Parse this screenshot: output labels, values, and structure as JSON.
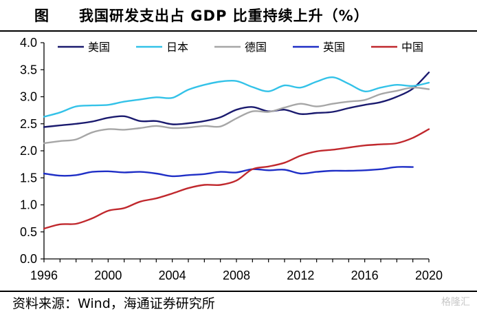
{
  "title": {
    "fig": "图",
    "text": "我国研发支出占 GDP 比重持续上升（%）"
  },
  "source": "资料来源：Wind，海通证券研究所",
  "watermark": "格隆汇",
  "chart_data": {
    "type": "line",
    "title": "我国研发支出占 GDP 比重持续上升（%）",
    "xlabel": "",
    "ylabel": "",
    "xlim": [
      1996,
      2020
    ],
    "ylim": [
      0.0,
      4.0
    ],
    "x_ticks": [
      1996,
      2000,
      2004,
      2008,
      2012,
      2016,
      2020
    ],
    "y_ticks": [
      "0.0",
      "0.5",
      "1.0",
      "1.5",
      "2.0",
      "2.5",
      "3.0",
      "3.5",
      "4.0"
    ],
    "grid": false,
    "legend_position": "top",
    "series": [
      {
        "name": "美国",
        "color": "#1a1a6e",
        "x": [
          1996,
          1997,
          1998,
          1999,
          2000,
          2001,
          2002,
          2003,
          2004,
          2005,
          2006,
          2007,
          2008,
          2009,
          2010,
          2011,
          2012,
          2013,
          2014,
          2015,
          2016,
          2017,
          2018,
          2019,
          2020
        ],
        "y": [
          2.44,
          2.47,
          2.5,
          2.54,
          2.61,
          2.64,
          2.55,
          2.55,
          2.49,
          2.51,
          2.55,
          2.62,
          2.76,
          2.81,
          2.73,
          2.76,
          2.68,
          2.7,
          2.72,
          2.79,
          2.85,
          2.9,
          3.0,
          3.15,
          3.45
        ]
      },
      {
        "name": "日本",
        "color": "#33c2e8",
        "x": [
          1996,
          1997,
          1998,
          1999,
          2000,
          2001,
          2002,
          2003,
          2004,
          2005,
          2006,
          2007,
          2008,
          2009,
          2010,
          2011,
          2012,
          2013,
          2014,
          2015,
          2016,
          2017,
          2018,
          2019,
          2020
        ],
        "y": [
          2.63,
          2.71,
          2.82,
          2.84,
          2.85,
          2.91,
          2.95,
          2.99,
          2.98,
          3.13,
          3.22,
          3.28,
          3.29,
          3.18,
          3.1,
          3.21,
          3.17,
          3.28,
          3.36,
          3.24,
          3.1,
          3.17,
          3.22,
          3.2,
          3.26
        ]
      },
      {
        "name": "德国",
        "color": "#a6a6a6",
        "x": [
          1996,
          1997,
          1998,
          1999,
          2000,
          2001,
          2002,
          2003,
          2004,
          2005,
          2006,
          2007,
          2008,
          2009,
          2010,
          2011,
          2012,
          2013,
          2014,
          2015,
          2016,
          2017,
          2018,
          2019,
          2020
        ],
        "y": [
          2.14,
          2.18,
          2.21,
          2.34,
          2.4,
          2.39,
          2.42,
          2.46,
          2.42,
          2.43,
          2.46,
          2.45,
          2.6,
          2.73,
          2.72,
          2.8,
          2.87,
          2.82,
          2.87,
          2.91,
          2.94,
          3.05,
          3.11,
          3.17,
          3.14
        ]
      },
      {
        "name": "英国",
        "color": "#1f2fc6",
        "x": [
          1996,
          1997,
          1998,
          1999,
          2000,
          2001,
          2002,
          2003,
          2004,
          2005,
          2006,
          2007,
          2008,
          2009,
          2010,
          2011,
          2012,
          2013,
          2014,
          2015,
          2016,
          2017,
          2018,
          2019
        ],
        "y": [
          1.58,
          1.54,
          1.55,
          1.61,
          1.62,
          1.6,
          1.61,
          1.58,
          1.53,
          1.55,
          1.57,
          1.61,
          1.6,
          1.66,
          1.64,
          1.65,
          1.58,
          1.61,
          1.63,
          1.63,
          1.64,
          1.66,
          1.7,
          1.7
        ]
      },
      {
        "name": "中国",
        "color": "#c0282d",
        "x": [
          1996,
          1997,
          1998,
          1999,
          2000,
          2001,
          2002,
          2003,
          2004,
          2005,
          2006,
          2007,
          2008,
          2009,
          2010,
          2011,
          2012,
          2013,
          2014,
          2015,
          2016,
          2017,
          2018,
          2019,
          2020
        ],
        "y": [
          0.56,
          0.64,
          0.65,
          0.75,
          0.89,
          0.94,
          1.06,
          1.12,
          1.21,
          1.31,
          1.37,
          1.37,
          1.45,
          1.66,
          1.71,
          1.78,
          1.91,
          1.99,
          2.02,
          2.06,
          2.1,
          2.12,
          2.14,
          2.24,
          2.4
        ]
      }
    ]
  }
}
